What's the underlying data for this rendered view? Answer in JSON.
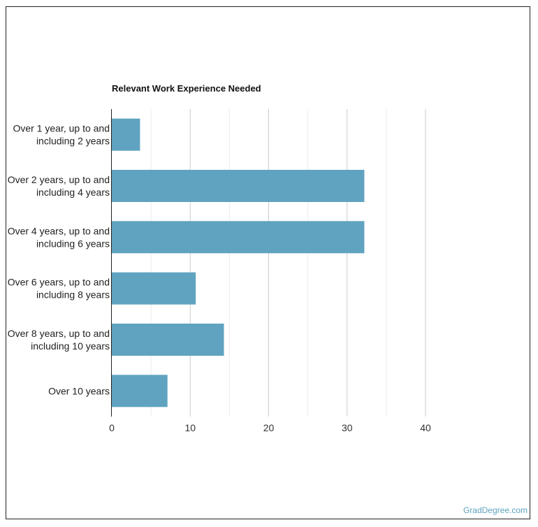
{
  "chart_data": {
    "type": "bar",
    "orientation": "horizontal",
    "title": "Relevant Work Experience Needed",
    "categories": [
      [
        "Over 1 year, up to and",
        "including 2 years"
      ],
      [
        "Over 2 years, up to and",
        "including 4 years"
      ],
      [
        "Over 4 years, up to and",
        "including 6 years"
      ],
      [
        "Over 6 years, up to and",
        "including 8 years"
      ],
      [
        "Over 8 years, up to and",
        "including 10 years"
      ],
      [
        "Over 10 years"
      ]
    ],
    "values": [
      3.6,
      32.2,
      32.2,
      10.7,
      14.3,
      7.1
    ],
    "xlim": [
      0,
      40
    ],
    "ticks": [
      0,
      10,
      20,
      30,
      40
    ],
    "tick_labels": [
      "0",
      "10",
      "20",
      "30",
      "40"
    ],
    "grid": true,
    "bar_color": "#5fa3c0"
  },
  "credit": "GradDegree.com"
}
